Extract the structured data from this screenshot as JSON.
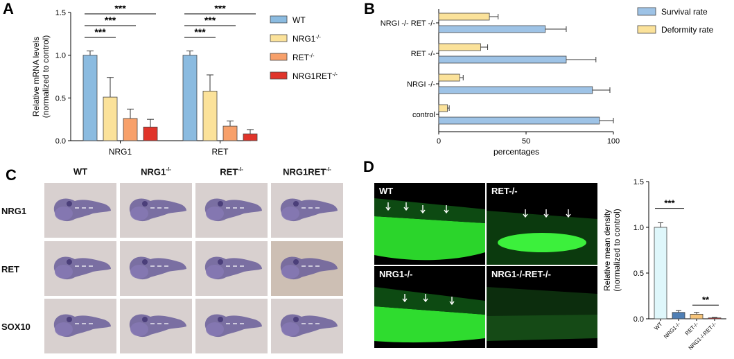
{
  "panels": {
    "A": "A",
    "B": "B",
    "C": "C",
    "D": "D"
  },
  "colors": {
    "wt": "#8bbbe0",
    "nrg1": "#fbe29a",
    "ret": "#f7a06a",
    "double": "#e0342a",
    "survival": "#9ec3e6",
    "deformity": "#fbe29a",
    "d_wt": "#dff7fb",
    "d_nrg1": "#4f7fb5",
    "d_ret": "#f6c47a",
    "d_double": "#c03a3a"
  },
  "chart_data": [
    {
      "type": "bar",
      "panel": "A",
      "ylabel_line1": "Relative mRNA levels",
      "ylabel_line2": "(normalized to control)",
      "categories": [
        "NRG1",
        "RET"
      ],
      "ylim": [
        0,
        1.5
      ],
      "yticks": [
        "0.0",
        "0.5",
        "1.0",
        "1.5"
      ],
      "series": [
        {
          "name": "WT",
          "values": [
            1.0,
            1.0
          ],
          "errors": [
            0.05,
            0.05
          ]
        },
        {
          "name": "NRG1-/-",
          "values": [
            0.51,
            0.58
          ],
          "errors": [
            0.23,
            0.19
          ]
        },
        {
          "name": "RET-/-",
          "values": [
            0.26,
            0.17
          ],
          "errors": [
            0.11,
            0.06
          ]
        },
        {
          "name": "NRG1-/-RET-/-",
          "values": [
            0.16,
            0.08
          ],
          "errors": [
            0.09,
            0.05
          ]
        }
      ],
      "legend": [
        "WT",
        "NRG1",
        "RET",
        "NRG1RET"
      ],
      "legend_sup": [
        "",
        "-/-",
        "-/-",
        "-/-"
      ],
      "significance": [
        "***",
        "***",
        "***",
        "***",
        "***",
        "***"
      ]
    },
    {
      "type": "bar",
      "panel": "B",
      "orientation": "horizontal",
      "xlabel": "percentages",
      "xlim": [
        0,
        100
      ],
      "xticks": [
        "0",
        "50",
        "100"
      ],
      "categories": [
        "NRGI -/- RET -/-",
        "RET -/-",
        "NRGI -/-",
        "control"
      ],
      "series": [
        {
          "name": "Deformity rate",
          "values": [
            29,
            24,
            12,
            5
          ],
          "errors": [
            5,
            4,
            2,
            1
          ]
        },
        {
          "name": "Survival rate",
          "values": [
            61,
            73,
            88,
            92
          ],
          "errors": [
            12,
            17,
            10,
            8
          ]
        }
      ],
      "legend": [
        "Survival rate",
        "Deformity rate"
      ]
    },
    {
      "type": "bar",
      "panel": "D",
      "ylabel_line1": "Relative mean density",
      "ylabel_line2": "(normalized to control)",
      "categories": [
        "WT",
        "NRG1-/-",
        "RET-/-",
        "NRG1-/-RET-/-"
      ],
      "values": [
        1.0,
        0.07,
        0.05,
        0.01
      ],
      "errors": [
        0.05,
        0.02,
        0.02,
        0.005
      ],
      "ylim": [
        0,
        1.5
      ],
      "yticks": [
        "0.0",
        "0.5",
        "1.0",
        "1.5"
      ],
      "significance": [
        "***",
        "**"
      ]
    }
  ],
  "panel_c": {
    "columns": [
      "WT",
      "NRG1",
      "RET",
      "NRG1RET"
    ],
    "columns_sup": [
      "",
      "-/-",
      "-/-",
      "-/-"
    ],
    "rows": [
      "NRG1",
      "RET",
      "SOX10"
    ]
  },
  "panel_d": {
    "images": [
      "WT",
      "RET-/-",
      "NRG1-/-",
      "NRG1-/-RET-/-"
    ]
  }
}
